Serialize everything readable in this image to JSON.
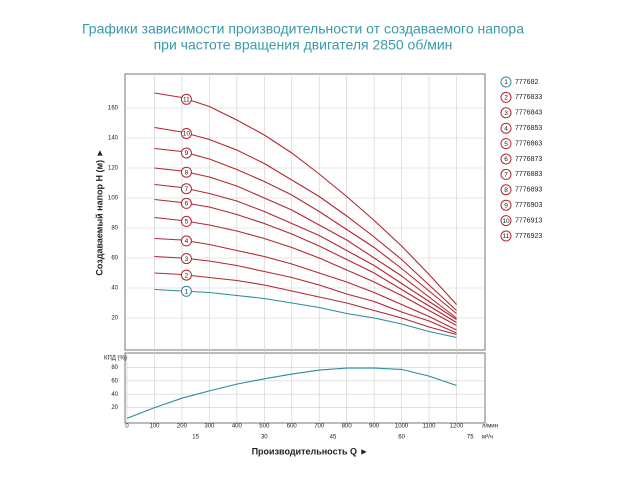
{
  "chart_data": [
    {
      "type": "line",
      "title": "Графики зависимости производительности от создаваемого напора",
      "subtitle": "при частоте вращения двигателя 2850 об/мин",
      "ylabel": "Создаваемый напор H (м) ►",
      "x": [
        100,
        200,
        300,
        400,
        500,
        600,
        700,
        800,
        900,
        1000,
        1100,
        1200
      ],
      "xlim": [
        0,
        1300
      ],
      "xticks": [
        100,
        200,
        300,
        400,
        500,
        600,
        700,
        800,
        900,
        1000,
        1100,
        1200
      ],
      "ylim": [
        0,
        180
      ],
      "yticks": [
        20,
        40,
        60,
        80,
        100,
        120,
        140,
        160
      ],
      "grid": true,
      "series": [
        {
          "label": "1",
          "name": "777682",
          "color": "#2a8c9c",
          "values": [
            39,
            38,
            37,
            35,
            33,
            30,
            27,
            23,
            20,
            16,
            11,
            7
          ]
        },
        {
          "label": "2",
          "name": "7776833",
          "color": "#b3262f",
          "values": [
            50,
            49,
            47,
            45,
            42,
            38,
            34,
            30,
            25,
            20,
            14,
            9
          ]
        },
        {
          "label": "3",
          "name": "7776843",
          "color": "#b3262f",
          "values": [
            61,
            60,
            58,
            55,
            51,
            47,
            42,
            36,
            31,
            24,
            18,
            10
          ]
        },
        {
          "label": "4",
          "name": "7776853",
          "color": "#b3262f",
          "values": [
            73,
            72,
            69,
            65,
            61,
            56,
            50,
            44,
            37,
            29,
            21,
            12
          ]
        },
        {
          "label": "5",
          "name": "7776863",
          "color": "#b3262f",
          "values": [
            87,
            85,
            82,
            78,
            73,
            67,
            60,
            52,
            44,
            35,
            25,
            15
          ]
        },
        {
          "label": "6",
          "name": "7776873",
          "color": "#b3262f",
          "values": [
            99,
            97,
            94,
            89,
            83,
            76,
            68,
            59,
            50,
            39,
            28,
            17
          ]
        },
        {
          "label": "7",
          "name": "7776883",
          "color": "#b3262f",
          "values": [
            109,
            107,
            103,
            98,
            91,
            83,
            75,
            65,
            55,
            43,
            31,
            19
          ]
        },
        {
          "label": "8",
          "name": "7776893",
          "color": "#b3262f",
          "values": [
            120,
            118,
            114,
            108,
            100,
            92,
            82,
            72,
            60,
            48,
            34,
            20
          ]
        },
        {
          "label": "9",
          "name": "7776903",
          "color": "#b3262f",
          "values": [
            133,
            131,
            126,
            119,
            111,
            102,
            91,
            79,
            67,
            53,
            38,
            23
          ]
        },
        {
          "label": "10",
          "name": "7776913",
          "color": "#b3262f",
          "values": [
            147,
            144,
            139,
            132,
            123,
            112,
            101,
            88,
            74,
            59,
            42,
            25
          ]
        },
        {
          "label": "11",
          "name": "7776923",
          "color": "#b3262f",
          "values": [
            170,
            167,
            161,
            152,
            142,
            130,
            116,
            101,
            85,
            68,
            49,
            29
          ]
        }
      ]
    },
    {
      "type": "line",
      "ylabel": "КПД (%)",
      "xlabel": "Производительность Q ►",
      "x": [
        0,
        100,
        200,
        300,
        400,
        500,
        600,
        700,
        800,
        900,
        1000,
        1100,
        1200
      ],
      "xlim": [
        0,
        1300
      ],
      "xticks": [
        0,
        100,
        200,
        300,
        400,
        500,
        600,
        700,
        800,
        900,
        1000,
        1100,
        1200
      ],
      "xunit": "л/мин",
      "x2lim": [
        0,
        78
      ],
      "x2ticks": [
        15,
        30,
        45,
        60,
        75
      ],
      "x2unit": "м³/ч",
      "ylim": [
        0,
        100
      ],
      "yticks": [
        20,
        40,
        60,
        80
      ],
      "grid": true,
      "series": [
        {
          "color": "#2a8c9c",
          "values": [
            4,
            20,
            34,
            45,
            55,
            63,
            70,
            76,
            79,
            79,
            77,
            67,
            53
          ]
        }
      ]
    }
  ]
}
